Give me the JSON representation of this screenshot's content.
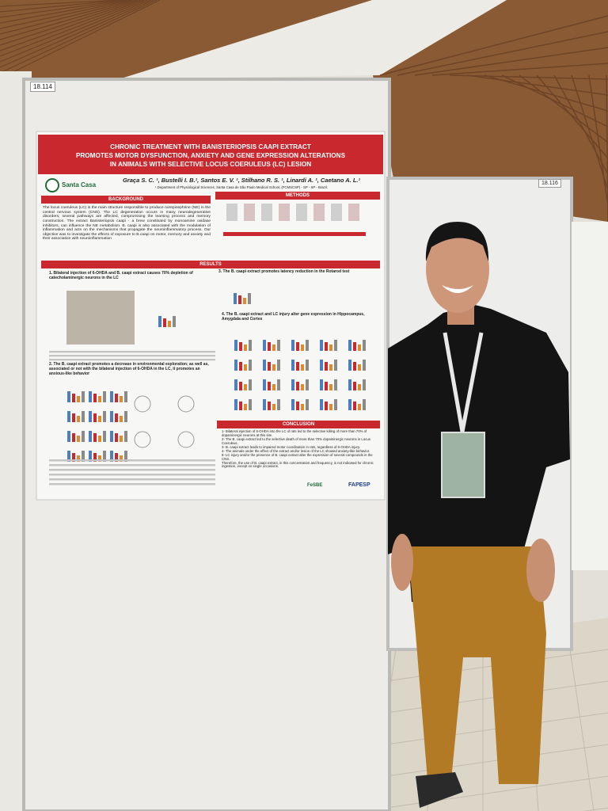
{
  "board_labels": [
    "18.114",
    "18.116"
  ],
  "poster": {
    "title_lines": [
      "CHRONIC TREATMENT WITH BANISTERIOPSIS CAAPI EXTRACT",
      "PROMOTES MOTOR DYSFUNCTION, ANXIETY AND GENE EXPRESSION ALTERATIONS",
      "IN ANIMALS WITH SELECTIVE LOCUS COERULEUS (LC) LESION"
    ],
    "logo": "Santa Casa",
    "authors": "Graça S. C. ¹, Bustelli I. B.¹, Santos E. V. ¹, Stilhano R. S. ¹, Linardi A. ¹, Caetano A. L.¹",
    "affiliation": "¹ Department of Physiological Sciences, Santa Casa de São Paulo Medical School, (FCMSCSP) - SP - SP - Brazil.",
    "background_heading": "BACKGROUND",
    "background_text": "The locus coeruleus (LC) is the main structure responsible to produce norepinephrine (NE) in the central nervous system (CNS). The LC degeneration occurs in many neurodegenerative disorders; several pathways are affected, compromising the learning process and memory construction. The extract Banisteriopsis caapi - a brew constituted by monoamine oxidase inhibitors, can influence the NE metabolism. B. caapi is also associated with the modulation of inflammation and acts on the mechanisms that propagate the neuroinflammatory process. Our objective was to investigate the effects of exposure to B.caapi on motor, memory and anxiety and their association with neuroinflammation",
    "methods_heading": "METHODS",
    "results_heading": "RESULTS",
    "result_1": "1. Bilateral injection of 6-OHDA and B. caapi extract causes 70% depletion of catecholaminergic neurons in the LC",
    "result_2": "2. The B. caapi extract promotes a decrease in environmental exploration; as well as, associated or not with the bilateral injection of 6-OHDA in the LC, it promotes an anxious-like behavior",
    "result_3": "3. The B. caapi extract promotes latency reduction in the Rotarod test",
    "result_4": "4. The B. caapi extract and LC injury alter gene expression in Hippocampus, Amygdala and Cortex",
    "conclusion_heading": "CONCLUSION",
    "conclusions": [
      "1- Bilateral injection of 6-OHDA into the LC of rats led to the selective killing of more than 70% of dopaminergic neurons at this site.",
      "2- The B. caapi extract led to the selective death of more than 70% dopaminergic neurons in Locus Coeruleus.",
      "3- B. caapi extract leads to impaired motor coordination in rats, regardless of 6-OHDA injury.",
      "4- The animals under the effect of the extract and/or lesion of the LC showed anxiety-like behavior.",
      "5- LC injury and/or the presence of B. caapi extract alter the expression of several compounds in the CNS.",
      "Therefore, the use of B. caapi extract, in this concentration and frequency, is not indicated for chronic ingestion, except on single occasions."
    ],
    "footer_logos": [
      "FeSBE",
      "FAPESP"
    ]
  }
}
